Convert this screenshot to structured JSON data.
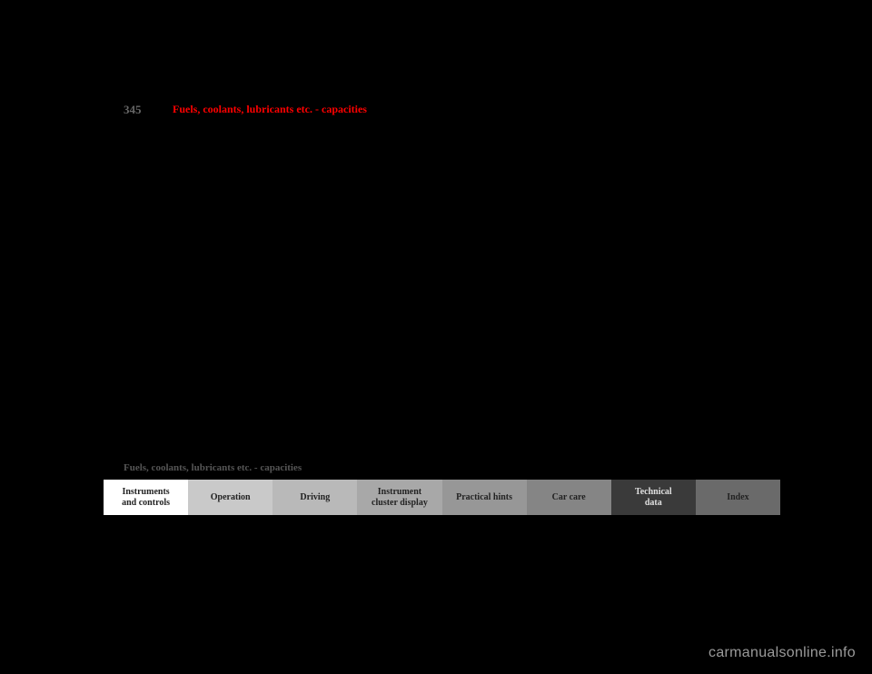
{
  "page_number": "345",
  "title": "Fuels, coolants, lubricants etc. - capacities",
  "breadcrumb": "Fuels, coolants, lubricants etc. - capacities",
  "tabs": [
    {
      "label": "Instruments\nand controls"
    },
    {
      "label": "Operation"
    },
    {
      "label": "Driving"
    },
    {
      "label": "Instrument\ncluster display"
    },
    {
      "label": "Practical hints"
    },
    {
      "label": "Car care"
    },
    {
      "label": "Technical\ndata"
    },
    {
      "label": "Index"
    }
  ],
  "tab_colors": [
    "#ffffff",
    "#c9c9c9",
    "#b9b9b9",
    "#a8a8a8",
    "#979797",
    "#858585",
    "#3a3a3a",
    "#6a6a6a"
  ],
  "active_tab_index": 6,
  "watermark": "carmanualsonline.info",
  "background_color": "#000000"
}
